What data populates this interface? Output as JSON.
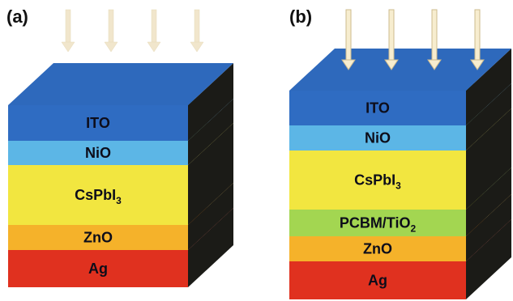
{
  "panels": [
    {
      "label": "(a)",
      "arrows": {
        "count": 4,
        "style": "faint"
      },
      "layers": [
        {
          "name": "ITO",
          "sub": "",
          "color": "#2f6cc2"
        },
        {
          "name": "NiO",
          "sub": "",
          "color": "#5cb6e6"
        },
        {
          "name": "CsPbI",
          "sub": "3",
          "color": "#f2e640"
        },
        {
          "name": "ZnO",
          "sub": "",
          "color": "#f5b22a"
        },
        {
          "name": "Ag",
          "sub": "",
          "color": "#e0311f"
        }
      ]
    },
    {
      "label": "(b)",
      "arrows": {
        "count": 4,
        "style": "bold"
      },
      "layers": [
        {
          "name": "ITO",
          "sub": "",
          "color": "#2f6cc2"
        },
        {
          "name": "NiO",
          "sub": "",
          "color": "#5cb6e6"
        },
        {
          "name": "CsPbI",
          "sub": "3",
          "color": "#f2e640"
        },
        {
          "name": "PCBM/TiO",
          "sub": "2",
          "color": "#a3d651"
        },
        {
          "name": "ZnO",
          "sub": "",
          "color": "#f5b22a"
        },
        {
          "name": "Ag",
          "sub": "",
          "color": "#e0311f"
        }
      ]
    }
  ]
}
